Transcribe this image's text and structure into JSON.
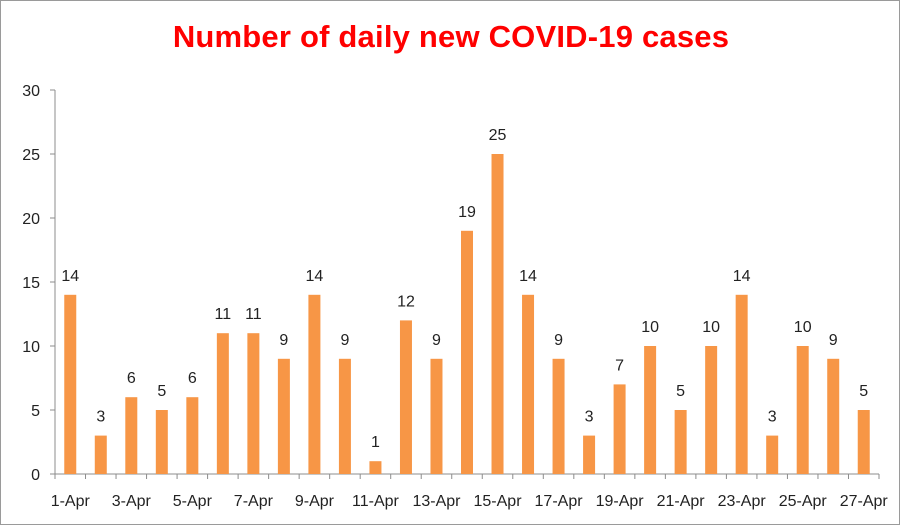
{
  "chart_data": {
    "type": "bar",
    "title": "Number of daily new COVID-19 cases",
    "xlabel": "",
    "ylabel": "",
    "ylim": [
      0,
      30
    ],
    "yticks": [
      0,
      5,
      10,
      15,
      20,
      25,
      30
    ],
    "grid": false,
    "legend": "none",
    "bar_color": "#f79646",
    "title_color": "#ff0000",
    "categories": [
      "1-Apr",
      "2-Apr",
      "3-Apr",
      "4-Apr",
      "5-Apr",
      "6-Apr",
      "7-Apr",
      "8-Apr",
      "9-Apr",
      "10-Apr",
      "11-Apr",
      "12-Apr",
      "13-Apr",
      "14-Apr",
      "15-Apr",
      "16-Apr",
      "17-Apr",
      "18-Apr",
      "19-Apr",
      "20-Apr",
      "21-Apr",
      "22-Apr",
      "23-Apr",
      "24-Apr",
      "25-Apr",
      "26-Apr",
      "27-Apr"
    ],
    "values": [
      14,
      3,
      6,
      5,
      6,
      11,
      11,
      9,
      14,
      9,
      1,
      12,
      9,
      19,
      25,
      14,
      9,
      3,
      7,
      10,
      5,
      10,
      14,
      3,
      10,
      9,
      5
    ]
  }
}
